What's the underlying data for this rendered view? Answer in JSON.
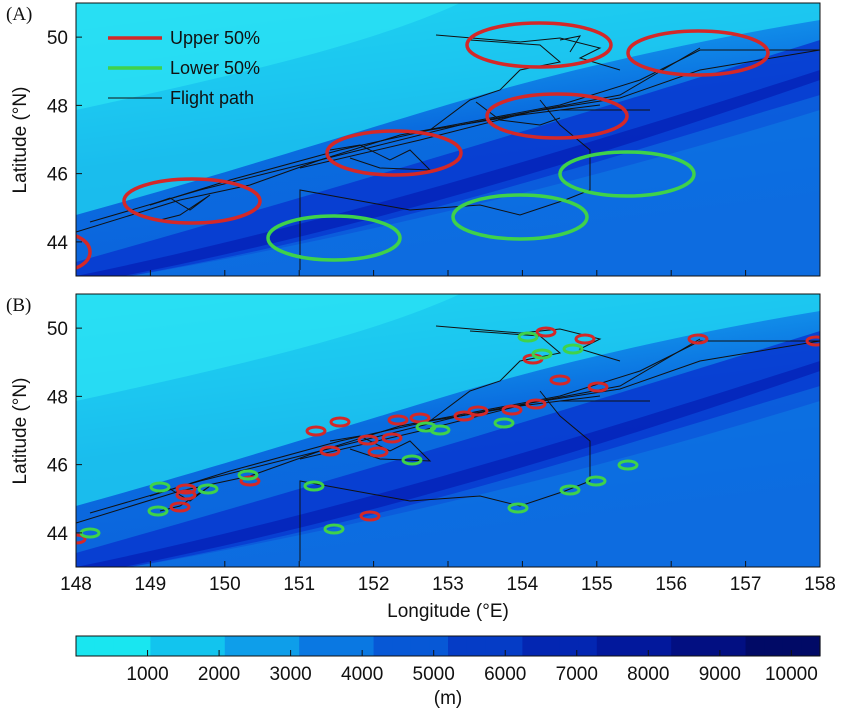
{
  "panels": [
    {
      "label": "(A)",
      "ylabel": "Latitude (°N)",
      "yticks": [
        "50",
        "48",
        "46",
        "44"
      ],
      "legend": [
        {
          "label": "Upper 50%",
          "color": "#d42828"
        },
        {
          "label": "Lower 50%",
          "color": "#3fd24a"
        },
        {
          "label": "Flight path",
          "color": "#111111"
        }
      ]
    },
    {
      "label": "(B)",
      "ylabel": "Latitude (°N)",
      "yticks": [
        "50",
        "48",
        "46",
        "44"
      ]
    }
  ],
  "xaxis": {
    "title": "Longitude (°E)",
    "ticks": [
      "148",
      "149",
      "150",
      "151",
      "152",
      "153",
      "154",
      "155",
      "156",
      "157",
      "158"
    ]
  },
  "colorbar": {
    "ticks": [
      "1000",
      "2000",
      "3000",
      "4000",
      "5000",
      "6000",
      "7000",
      "8000",
      "9000",
      "10000"
    ],
    "unit": "(m)",
    "colors": [
      "#19e6f0",
      "#12c4ee",
      "#0e9eea",
      "#0a78e2",
      "#0758d6",
      "#053cc6",
      "#0326b2",
      "#02189c",
      "#020f82",
      "#010a66"
    ]
  },
  "map_extent": {
    "lon": [
      148,
      158
    ],
    "lat": [
      43,
      51
    ]
  }
}
